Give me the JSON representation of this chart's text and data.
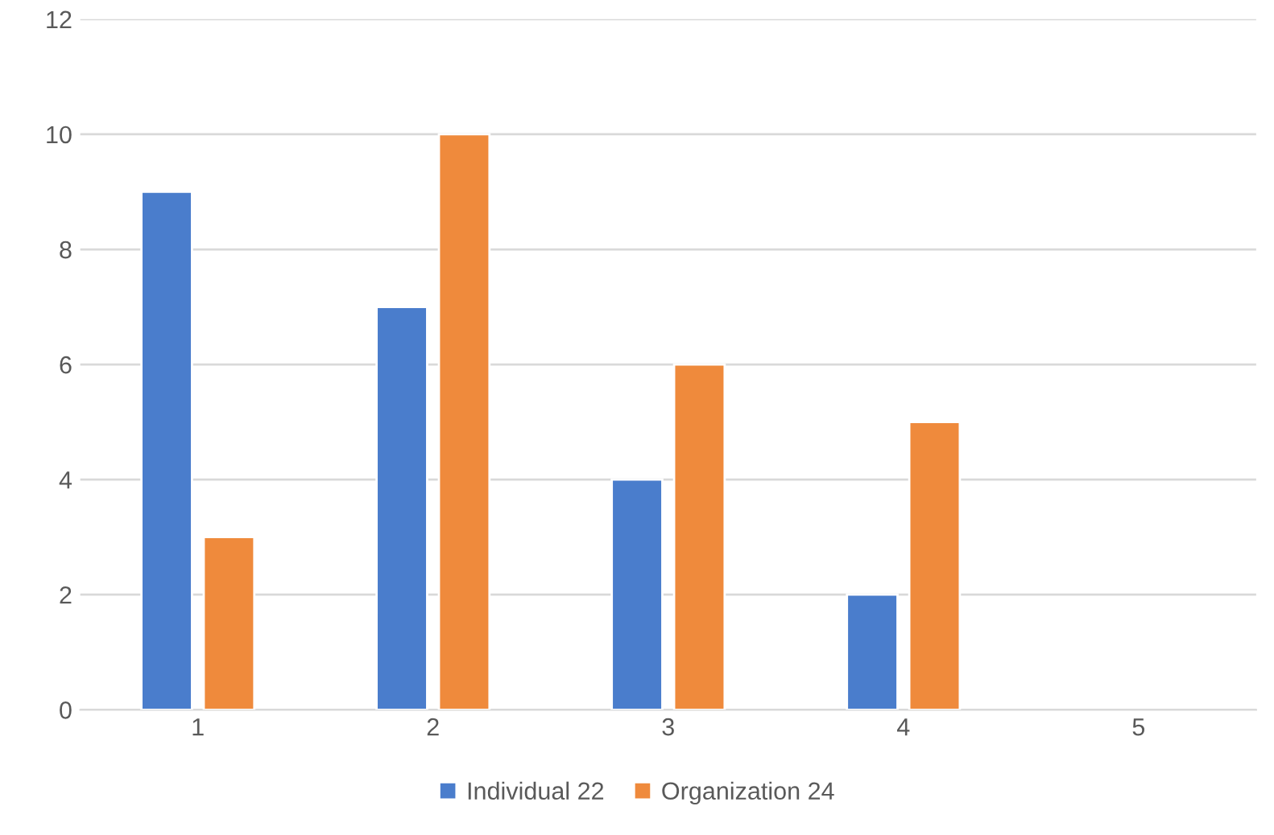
{
  "chart_data": {
    "type": "bar",
    "categories": [
      "1",
      "2",
      "3",
      "4",
      "5"
    ],
    "series": [
      {
        "name": "Individual 22",
        "color": "#4a7dcc",
        "values": [
          9,
          7,
          4,
          2,
          null
        ]
      },
      {
        "name": "Organization 24",
        "color": "#ef8a3c",
        "values": [
          3,
          10,
          6,
          5,
          null
        ]
      }
    ],
    "ylim": [
      0,
      12
    ],
    "yticks": [
      0,
      2,
      4,
      6,
      8,
      10,
      12
    ],
    "grid": "y",
    "legend": "bottom"
  }
}
